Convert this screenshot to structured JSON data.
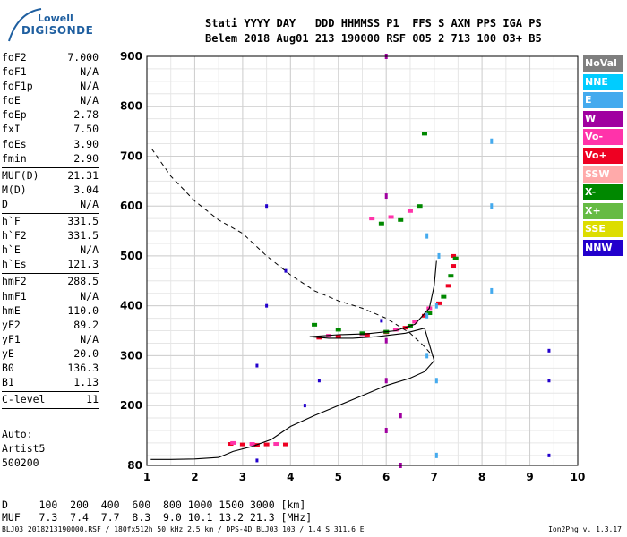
{
  "header": {
    "row1": "Stati YYYY DAY   DDD HHMMSS P1  FFS S AXN PPS IGA PS",
    "row2": "Belem 2018 Aug01 213 190000 RSF 005 2 713 100 03+ B5"
  },
  "logo": {
    "top": "Lowell",
    "bottom": "DIGISONDE"
  },
  "params_group1": [
    {
      "name": "foF2",
      "value": "7.000"
    },
    {
      "name": "foF1",
      "value": "N/A"
    },
    {
      "name": "foF1p",
      "value": "N/A"
    },
    {
      "name": "foE",
      "value": "N/A"
    },
    {
      "name": "foEp",
      "value": "2.78"
    },
    {
      "name": "fxI",
      "value": "7.50"
    },
    {
      "name": "foEs",
      "value": "3.90"
    },
    {
      "name": "fmin",
      "value": "2.90"
    }
  ],
  "params_group2": [
    {
      "name": "MUF(D)",
      "value": "21.31"
    },
    {
      "name": "M(D)",
      "value": "3.04"
    },
    {
      "name": "D",
      "value": "N/A"
    }
  ],
  "params_group3": [
    {
      "name": "h`F",
      "value": "331.5"
    },
    {
      "name": "h`F2",
      "value": "331.5"
    },
    {
      "name": "h`E",
      "value": "N/A"
    },
    {
      "name": "h`Es",
      "value": "121.3"
    }
  ],
  "params_group4": [
    {
      "name": "hmF2",
      "value": "288.5"
    },
    {
      "name": "hmF1",
      "value": "N/A"
    },
    {
      "name": "hmE",
      "value": "110.0"
    },
    {
      "name": "yF2",
      "value": "89.2"
    },
    {
      "name": "yF1",
      "value": "N/A"
    },
    {
      "name": "yE",
      "value": "20.0"
    },
    {
      "name": "B0",
      "value": "136.3"
    },
    {
      "name": "B1",
      "value": "1.13"
    }
  ],
  "params_group5": [
    {
      "name": "C-level",
      "value": "11"
    }
  ],
  "auto": [
    "Auto:",
    "Artist5",
    "500200"
  ],
  "legend": [
    {
      "label": "NoVal",
      "color": "#7f7f7f"
    },
    {
      "label": "NNE",
      "color": "#00ccff"
    },
    {
      "label": "E",
      "color": "#44aaee"
    },
    {
      "label": "W",
      "color": "#a000a0"
    },
    {
      "label": "Vo-",
      "color": "#ff33aa"
    },
    {
      "label": "Vo+",
      "color": "#ee0022"
    },
    {
      "label": "SSW",
      "color": "#ffaaaa"
    },
    {
      "label": "X-",
      "color": "#008800"
    },
    {
      "label": "X+",
      "color": "#66bb44"
    },
    {
      "label": "SSE",
      "color": "#dddd00"
    },
    {
      "label": "NNW",
      "color": "#2200cc"
    }
  ],
  "footer": {
    "d_row": "D     100  200  400  600  800 1000 1500 3000 [km]",
    "muf_row": "MUF   7.3  7.4  7.7  8.3  9.0 10.1 13.2 21.3 [MHz]",
    "info": "BLJ03_2018213190000.RSF / 180fx512h 50 kHz 2.5 km / DPS-4D BLJ03 103 / 1.4 S 311.6 E",
    "version": "Ion2Png v. 1.3.17"
  },
  "chart_data": {
    "type": "scatter",
    "title": "",
    "xlabel": "",
    "ylabel": "",
    "xlim": [
      1,
      10
    ],
    "ylim": [
      80,
      900
    ],
    "x_ticks": [
      1,
      2,
      3,
      4,
      5,
      6,
      7,
      8,
      9,
      10
    ],
    "y_ticks": [
      80,
      200,
      300,
      400,
      500,
      600,
      700,
      800,
      900
    ],
    "grid": true,
    "series": [
      {
        "name": "Vo+",
        "color": "#ee0022",
        "type": "trace",
        "points": [
          [
            2.75,
            123
          ],
          [
            3.0,
            122
          ],
          [
            3.3,
            121
          ],
          [
            3.5,
            122
          ],
          [
            3.9,
            122
          ],
          [
            4.6,
            336
          ],
          [
            5.0,
            338
          ],
          [
            5.6,
            342
          ],
          [
            6.0,
            347
          ],
          [
            6.4,
            356
          ],
          [
            6.8,
            380
          ],
          [
            7.1,
            405
          ],
          [
            7.3,
            440
          ],
          [
            7.4,
            480
          ],
          [
            7.4,
            500
          ]
        ]
      },
      {
        "name": "Vo-",
        "color": "#ff33aa",
        "type": "trace",
        "points": [
          [
            2.8,
            125
          ],
          [
            3.2,
            123
          ],
          [
            3.7,
            123
          ],
          [
            4.8,
            340
          ],
          [
            5.5,
            343
          ],
          [
            6.2,
            352
          ],
          [
            6.6,
            368
          ],
          [
            6.9,
            395
          ],
          [
            5.7,
            575
          ],
          [
            6.1,
            578
          ],
          [
            6.5,
            590
          ]
        ]
      },
      {
        "name": "X-",
        "color": "#008800",
        "type": "trace",
        "points": [
          [
            4.5,
            362
          ],
          [
            5.0,
            352
          ],
          [
            5.5,
            345
          ],
          [
            6.0,
            348
          ],
          [
            6.5,
            360
          ],
          [
            6.9,
            385
          ],
          [
            7.2,
            418
          ],
          [
            7.35,
            460
          ],
          [
            7.45,
            495
          ],
          [
            5.9,
            565
          ],
          [
            6.3,
            572
          ],
          [
            6.7,
            600
          ],
          [
            6.8,
            745
          ]
        ]
      },
      {
        "name": "W",
        "color": "#a000a0",
        "type": "band",
        "points": [
          [
            6.0,
            150
          ],
          [
            6.0,
            250
          ],
          [
            6.0,
            330
          ],
          [
            6.0,
            620
          ],
          [
            6.0,
            900
          ],
          [
            6.3,
            80
          ],
          [
            6.3,
            180
          ]
        ]
      },
      {
        "name": "E",
        "color": "#44aaee",
        "type": "band",
        "points": [
          [
            6.85,
            300
          ],
          [
            6.85,
            380
          ],
          [
            6.85,
            540
          ],
          [
            7.05,
            100
          ],
          [
            7.05,
            250
          ],
          [
            7.05,
            400
          ],
          [
            7.1,
            500
          ],
          [
            8.2,
            430
          ],
          [
            8.2,
            600
          ],
          [
            8.2,
            730
          ]
        ]
      },
      {
        "name": "NNW",
        "color": "#2200cc",
        "type": "noise",
        "points": [
          [
            3.3,
            90
          ],
          [
            3.3,
            280
          ],
          [
            3.5,
            400
          ],
          [
            3.5,
            600
          ],
          [
            3.9,
            470
          ],
          [
            4.3,
            200
          ],
          [
            4.6,
            250
          ],
          [
            5.9,
            370
          ],
          [
            9.4,
            100
          ],
          [
            9.4,
            250
          ],
          [
            9.4,
            310
          ]
        ]
      }
    ],
    "virtual_height_curve": {
      "points": [
        [
          1.08,
          92
        ],
        [
          1.5,
          92
        ],
        [
          2.0,
          93
        ],
        [
          2.5,
          96
        ],
        [
          2.8,
          108
        ],
        [
          3.2,
          118
        ],
        [
          3.6,
          132
        ],
        [
          4.0,
          158
        ],
        [
          4.5,
          180
        ],
        [
          5.0,
          200
        ],
        [
          5.5,
          220
        ],
        [
          6.0,
          240
        ],
        [
          6.5,
          255
        ],
        [
          6.8,
          268
        ],
        [
          7.0,
          290
        ],
        [
          6.8,
          355
        ],
        [
          6.4,
          345
        ],
        [
          5.8,
          338
        ],
        [
          5.3,
          335
        ],
        [
          4.8,
          335
        ],
        [
          4.4,
          338
        ],
        [
          5.0,
          342
        ],
        [
          5.6,
          344
        ],
        [
          6.2,
          350
        ],
        [
          6.6,
          363
        ],
        [
          6.9,
          395
        ],
        [
          7.0,
          440
        ],
        [
          7.05,
          490
        ]
      ]
    },
    "model_dashed": {
      "points": [
        [
          1.1,
          715
        ],
        [
          1.5,
          660
        ],
        [
          2.0,
          610
        ],
        [
          2.5,
          572
        ],
        [
          3.0,
          545
        ],
        [
          3.5,
          500
        ],
        [
          4.0,
          462
        ],
        [
          4.5,
          430
        ],
        [
          5.0,
          410
        ],
        [
          5.5,
          395
        ],
        [
          6.0,
          375
        ],
        [
          6.5,
          345
        ],
        [
          6.8,
          318
        ],
        [
          7.0,
          296
        ]
      ]
    }
  }
}
